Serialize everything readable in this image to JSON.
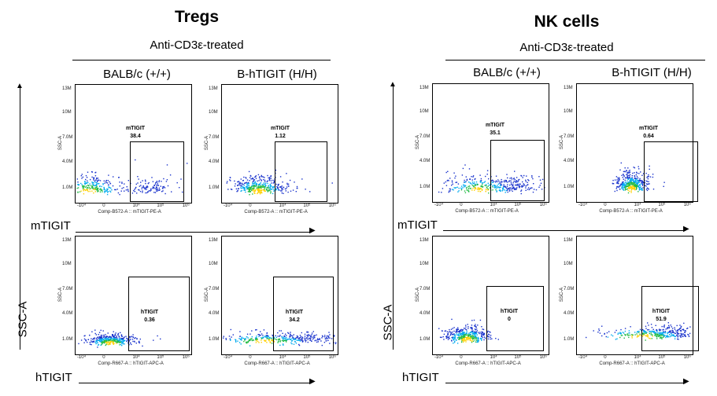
{
  "axes": {
    "y_left": "SSC-A",
    "y_right": "SSC-A",
    "row1_x": "mTIGIT",
    "row2_x": "hTIGIT",
    "yticks": [
      "13M",
      "10M",
      "7.0M",
      "4.0M",
      "1.0M"
    ],
    "xticks": [
      "-10⁴",
      "0",
      "10⁴",
      "10⁵",
      "10⁶"
    ],
    "plot_ylabel": "SSC-A",
    "plot_xlabel_m": "Comp-B572-A :: mTIGIT-PE-A",
    "plot_xlabel_h": "Comp-R667-A :: hTIGIT-APC-A"
  },
  "panels": [
    {
      "title": "Tregs",
      "treatment": "Anti-CD3ε-treated",
      "columns": [
        "BALB/c (+/+)",
        "B-hTIGIT (H/H)"
      ]
    },
    {
      "title": "NK cells",
      "treatment": "Anti-CD3ε-treated",
      "columns": [
        "BALB/c (+/+)",
        "B-hTIGIT (H/H)"
      ]
    }
  ],
  "chart_data": [
    {
      "type": "scatter",
      "panel": "Tregs",
      "strain": "BALB/c (+/+)",
      "marker": "mTIGIT",
      "gate": "mTIGIT",
      "percent": "38.4",
      "x_label": "Comp-B572-A :: mTIGIT-PE-A",
      "y_label": "SSC-A",
      "ylim": [
        "0",
        "13M"
      ]
    },
    {
      "type": "scatter",
      "panel": "Tregs",
      "strain": "B-hTIGIT (H/H)",
      "marker": "mTIGIT",
      "gate": "mTIGIT",
      "percent": "1.12",
      "x_label": "Comp-B572-A :: mTIGIT-PE-A",
      "y_label": "SSC-A",
      "ylim": [
        "0",
        "13M"
      ]
    },
    {
      "type": "scatter",
      "panel": "Tregs",
      "strain": "BALB/c (+/+)",
      "marker": "hTIGIT",
      "gate": "hTIGIT",
      "percent": "0.36",
      "x_label": "Comp-R667-A :: hTIGIT-APC-A",
      "y_label": "SSC-A",
      "ylim": [
        "0",
        "13M"
      ]
    },
    {
      "type": "scatter",
      "panel": "Tregs",
      "strain": "B-hTIGIT (H/H)",
      "marker": "hTIGIT",
      "gate": "hTIGIT",
      "percent": "34.2",
      "x_label": "Comp-R667-A :: hTIGIT-APC-A",
      "y_label": "SSC-A",
      "ylim": [
        "0",
        "13M"
      ]
    },
    {
      "type": "scatter",
      "panel": "NK cells",
      "strain": "BALB/c (+/+)",
      "marker": "mTIGIT",
      "gate": "mTIGIT",
      "percent": "35.1",
      "x_label": "Comp-B572-A :: mTIGIT-PE-A",
      "y_label": "SSC-A",
      "ylim": [
        "0",
        "13M"
      ]
    },
    {
      "type": "scatter",
      "panel": "NK cells",
      "strain": "B-hTIGIT (H/H)",
      "marker": "mTIGIT",
      "gate": "mTIGIT",
      "percent": "0.64",
      "x_label": "Comp-B572-A :: mTIGIT-PE-A",
      "y_label": "SSC-A",
      "ylim": [
        "0",
        "13M"
      ]
    },
    {
      "type": "scatter",
      "panel": "NK cells",
      "strain": "BALB/c (+/+)",
      "marker": "hTIGIT",
      "gate": "hTIGIT",
      "percent": "0",
      "x_label": "Comp-R667-A :: hTIGIT-APC-A",
      "y_label": "SSC-A",
      "ylim": [
        "0",
        "13M"
      ]
    },
    {
      "type": "scatter",
      "panel": "NK cells",
      "strain": "B-hTIGIT (H/H)",
      "marker": "hTIGIT",
      "gate": "hTIGIT",
      "percent": "51.9",
      "x_label": "Comp-R667-A :: hTIGIT-APC-A",
      "y_label": "SSC-A",
      "ylim": [
        "0",
        "13M"
      ]
    }
  ]
}
